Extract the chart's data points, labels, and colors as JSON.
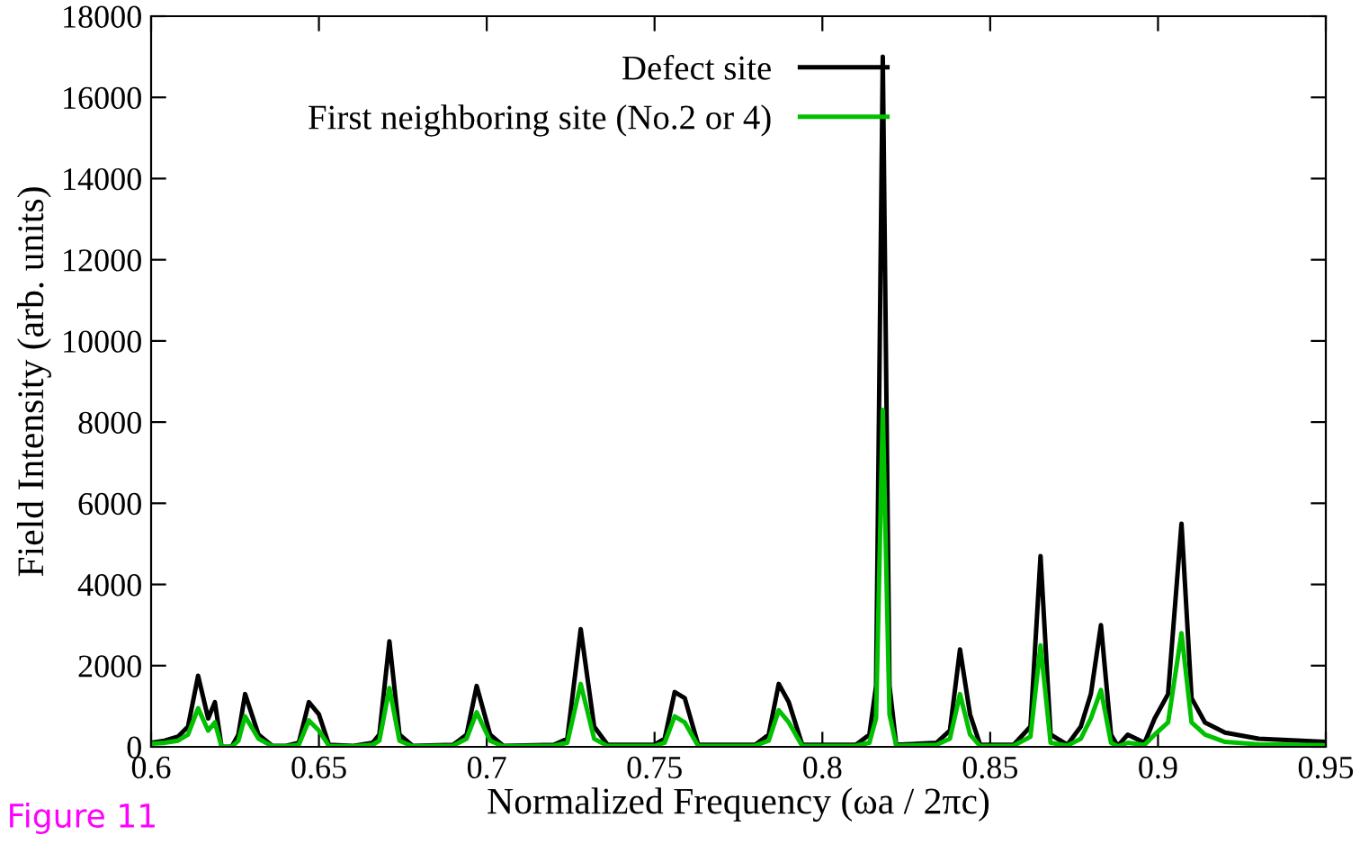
{
  "chart_data": {
    "type": "line",
    "xlabel": "Normalized Frequency (ωa / 2πc)",
    "ylabel": "Field Intensity (arb. units)",
    "x": [
      0.6,
      0.604,
      0.608,
      0.611,
      0.614,
      0.617,
      0.619,
      0.621,
      0.624,
      0.626,
      0.628,
      0.632,
      0.636,
      0.64,
      0.644,
      0.647,
      0.65,
      0.653,
      0.66,
      0.666,
      0.668,
      0.671,
      0.674,
      0.678,
      0.69,
      0.694,
      0.697,
      0.701,
      0.705,
      0.72,
      0.724,
      0.728,
      0.732,
      0.736,
      0.75,
      0.753,
      0.756,
      0.759,
      0.763,
      0.78,
      0.784,
      0.787,
      0.79,
      0.794,
      0.81,
      0.814,
      0.816,
      0.818,
      0.82,
      0.822,
      0.834,
      0.838,
      0.841,
      0.844,
      0.847,
      0.857,
      0.862,
      0.865,
      0.868,
      0.873,
      0.877,
      0.88,
      0.883,
      0.886,
      0.888,
      0.891,
      0.896,
      0.899,
      0.903,
      0.907,
      0.91,
      0.914,
      0.92,
      0.93,
      0.95
    ],
    "series": [
      {
        "name": "Defect site",
        "color": "#000000",
        "values": [
          100,
          150,
          250,
          500,
          1750,
          700,
          1100,
          0,
          0,
          300,
          1300,
          300,
          30,
          20,
          100,
          1100,
          800,
          50,
          20,
          100,
          300,
          2600,
          300,
          20,
          50,
          300,
          1500,
          300,
          20,
          50,
          200,
          2900,
          500,
          50,
          50,
          200,
          1350,
          1200,
          50,
          50,
          300,
          1550,
          1100,
          50,
          50,
          300,
          1500,
          17000,
          1500,
          50,
          100,
          400,
          2400,
          800,
          50,
          50,
          500,
          4700,
          300,
          50,
          500,
          1300,
          3000,
          300,
          20,
          300,
          100,
          700,
          1300,
          5500,
          1200,
          600,
          350,
          200,
          120
        ]
      },
      {
        "name": "First neighboring site (No.2 or 4)",
        "color": "#00c000",
        "values": [
          80,
          100,
          150,
          300,
          950,
          400,
          600,
          0,
          0,
          150,
          750,
          200,
          20,
          10,
          50,
          650,
          400,
          20,
          10,
          50,
          150,
          1450,
          150,
          10,
          30,
          200,
          850,
          150,
          10,
          30,
          100,
          1550,
          200,
          20,
          20,
          100,
          750,
          600,
          20,
          30,
          150,
          900,
          600,
          20,
          30,
          100,
          700,
          8300,
          800,
          30,
          50,
          200,
          1300,
          300,
          20,
          30,
          250,
          2500,
          100,
          30,
          200,
          700,
          1400,
          100,
          10,
          100,
          50,
          300,
          600,
          2800,
          600,
          300,
          120,
          60,
          40
        ]
      }
    ],
    "xlim": [
      0.6,
      0.95
    ],
    "xticks": [
      0.6,
      0.65,
      0.7,
      0.75,
      0.8,
      0.85,
      0.9,
      0.95
    ],
    "ylim": [
      0,
      18000
    ],
    "yticks": [
      0,
      2000,
      4000,
      6000,
      8000,
      10000,
      12000,
      14000,
      16000,
      18000
    ],
    "grid": false,
    "legend": "top",
    "marker": "none",
    "line_style": "solid",
    "annotations": [
      "Figure 11"
    ]
  }
}
